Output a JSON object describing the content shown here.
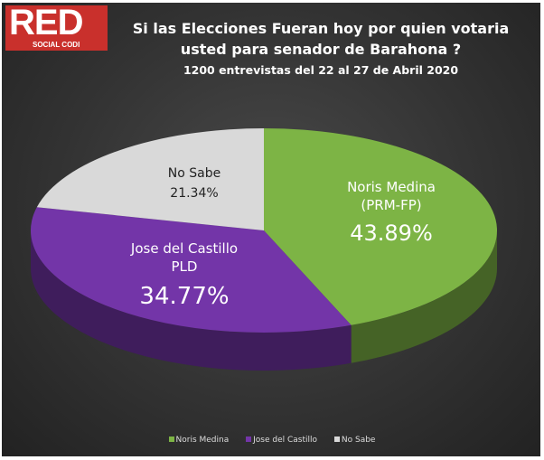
{
  "logo": {
    "text": "RED",
    "sub": "SOCIAL CODI"
  },
  "chart_data": {
    "type": "pie",
    "title": "Si las Elecciones Fueran hoy por quien votaria usted para senador de Barahona ?",
    "title_line1": "Si las Elecciones Fueran hoy por quien votaria",
    "title_line2": "usted para senador de Barahona ?",
    "subtitle": "1200 entrevistas  del 22 al 27 de Abril 2020",
    "style": "3d",
    "legend_position": "bottom",
    "slices": [
      {
        "name": "Noris Medina",
        "label_line1": "Noris Medina",
        "label_line2": "(PRM-FP)",
        "value": 43.89,
        "value_label": "43.89%",
        "color": "#7db445"
      },
      {
        "name": "Jose del Castillo",
        "label_line1": "Jose del Castillo",
        "label_line2": "PLD",
        "value": 34.77,
        "value_label": "34.77%",
        "color": "#7335a8"
      },
      {
        "name": "No Sabe",
        "label_line1": "No Sabe",
        "label_line2": "",
        "value": 21.34,
        "value_label": "21.34%",
        "color": "#d9d9d9"
      }
    ]
  }
}
